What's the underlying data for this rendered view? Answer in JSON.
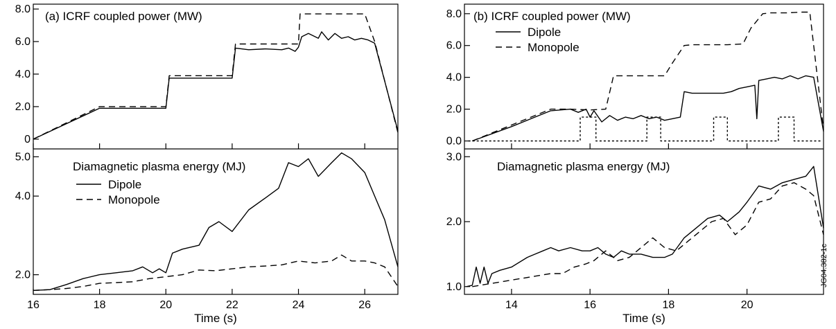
{
  "chart_data": [
    {
      "panel": "a",
      "type": "line",
      "xlabel": "Time (s)",
      "xlim": [
        16,
        27
      ],
      "x_ticks": [
        16,
        18,
        20,
        22,
        24,
        26
      ],
      "tick_labels": {
        "x": [
          "16",
          "18",
          "20",
          "22",
          "24",
          "26"
        ],
        "top_y": [
          "0",
          "2.0",
          "4.0",
          "6.0",
          "8.0"
        ],
        "bottom_y": [
          "2.0",
          "4.0",
          "5.0"
        ]
      },
      "top": {
        "annotation": "(a)  ICRF coupled power (MW)",
        "ylim": [
          -0.6,
          8.3
        ],
        "y_ticks": [
          0,
          2,
          4,
          6,
          8
        ],
        "series": [
          {
            "style": "solid",
            "x": [
              16.0,
              18.0,
              20.0,
              20.1,
              22.0,
              22.1,
              22.5,
              23.0,
              23.5,
              23.7,
              23.9,
              24.0,
              24.1,
              24.3,
              24.6,
              24.7,
              24.9,
              25.1,
              25.3,
              25.5,
              25.7,
              25.9,
              26.1,
              26.3,
              27.0
            ],
            "y": [
              0,
              1.9,
              1.9,
              3.75,
              3.75,
              5.6,
              5.5,
              5.55,
              5.5,
              5.6,
              5.4,
              5.65,
              6.3,
              6.5,
              6.2,
              6.6,
              6.1,
              6.5,
              6.2,
              6.3,
              6.1,
              6.2,
              6.1,
              5.9,
              0.5
            ]
          },
          {
            "style": "dashed",
            "x": [
              16.0,
              18.0,
              20.0,
              20.1,
              22.0,
              22.1,
              24.0,
              24.05,
              26.0,
              26.3,
              27.0
            ],
            "y": [
              0,
              2.0,
              2.0,
              3.9,
              3.9,
              5.85,
              5.85,
              7.7,
              7.7,
              6.0,
              0.4
            ]
          }
        ]
      },
      "bottom": {
        "annotation": "Diamagnetic plasma energy (MJ)",
        "legend": [
          {
            "label": "Dipole",
            "style": "solid"
          },
          {
            "label": "Monopole",
            "style": "dashed"
          }
        ],
        "ylim": [
          1.5,
          5.2
        ],
        "y_ticks": [
          2,
          4,
          5
        ],
        "series": [
          {
            "style": "solid",
            "x": [
              16.0,
              16.5,
              17.0,
              17.5,
              18.0,
              18.5,
              19.0,
              19.3,
              19.6,
              19.8,
              20.0,
              20.2,
              20.5,
              21.0,
              21.3,
              21.6,
              22.0,
              22.5,
              23.0,
              23.4,
              23.7,
              24.0,
              24.3,
              24.6,
              25.0,
              25.3,
              25.6,
              26.0,
              26.3,
              26.6,
              27.0
            ],
            "y": [
              1.6,
              1.62,
              1.75,
              1.9,
              2.0,
              2.05,
              2.1,
              2.2,
              2.05,
              2.15,
              2.05,
              2.55,
              2.65,
              2.75,
              3.2,
              3.35,
              3.1,
              3.65,
              3.95,
              4.2,
              4.85,
              4.75,
              4.95,
              4.5,
              4.85,
              5.1,
              4.95,
              4.6,
              4.0,
              3.4,
              2.2
            ]
          },
          {
            "style": "dashed",
            "x": [
              16.0,
              16.5,
              17.0,
              17.5,
              18.0,
              18.5,
              19.0,
              19.5,
              20.0,
              20.5,
              21.0,
              21.5,
              22.0,
              22.5,
              23.0,
              23.5,
              24.0,
              24.5,
              25.0,
              25.3,
              25.6,
              26.0,
              26.3,
              26.6,
              27.0
            ],
            "y": [
              1.6,
              1.62,
              1.65,
              1.7,
              1.78,
              1.8,
              1.82,
              1.9,
              1.95,
              2.0,
              2.12,
              2.1,
              2.15,
              2.2,
              2.22,
              2.25,
              2.35,
              2.3,
              2.35,
              2.5,
              2.35,
              2.35,
              2.3,
              2.2,
              1.7
            ]
          }
        ]
      }
    },
    {
      "panel": "b",
      "type": "line",
      "xlabel": "Time (s)",
      "xlim": [
        12.8,
        21.95
      ],
      "x_ticks": [
        14,
        16,
        18,
        20
      ],
      "tick_labels": {
        "x": [
          "14",
          "16",
          "18",
          "20"
        ],
        "top_y": [
          "0.0",
          "2.0",
          "4.0",
          "6.0",
          "8.0"
        ],
        "bottom_y": [
          "1.0",
          "2.0",
          "3.0"
        ]
      },
      "top": {
        "annotation": "(b)  ICRF coupled power (MW)",
        "legend": [
          {
            "label": "Dipole",
            "style": "solid"
          },
          {
            "label": "Monopole",
            "style": "dashed"
          }
        ],
        "ylim": [
          -0.5,
          8.6
        ],
        "y_ticks": [
          0,
          2,
          4,
          6,
          8
        ],
        "series": [
          {
            "style": "solid",
            "x": [
              13.0,
              14.0,
              15.0,
              15.5,
              15.7,
              15.9,
              16.0,
              16.1,
              16.3,
              16.5,
              16.7,
              16.9,
              17.1,
              17.3,
              17.5,
              17.7,
              17.9,
              18.1,
              18.3,
              18.4,
              18.6,
              19.0,
              19.4,
              19.6,
              19.8,
              20.0,
              20.2,
              20.25,
              20.3,
              20.5,
              20.7,
              20.9,
              21.1,
              21.3,
              21.5,
              21.7,
              21.95
            ],
            "y": [
              0,
              0.9,
              1.9,
              2.0,
              1.8,
              2.0,
              1.5,
              1.9,
              1.2,
              1.6,
              1.3,
              1.5,
              1.4,
              1.6,
              1.4,
              1.5,
              1.3,
              1.4,
              1.5,
              3.1,
              3.0,
              3.0,
              3.0,
              3.1,
              3.3,
              3.4,
              3.5,
              1.4,
              3.8,
              3.9,
              4.0,
              3.9,
              4.1,
              3.9,
              4.1,
              4.0,
              0.6
            ]
          },
          {
            "style": "dashed",
            "x": [
              13.0,
              14.0,
              15.0,
              15.5,
              16.0,
              16.4,
              16.6,
              17.0,
              17.5,
              17.9,
              18.1,
              18.4,
              18.6,
              19.0,
              19.5,
              19.9,
              20.1,
              20.4,
              20.6,
              21.0,
              21.4,
              21.6,
              21.95
            ],
            "y": [
              0,
              1.0,
              2.0,
              2.0,
              1.95,
              2.0,
              4.1,
              4.1,
              4.1,
              4.1,
              4.9,
              6.0,
              6.05,
              6.05,
              6.05,
              6.1,
              7.1,
              8.0,
              8.05,
              8.05,
              8.1,
              8.1,
              0.7
            ]
          },
          {
            "style": "dotted",
            "x": [
              12.9,
              15.75,
              15.75,
              16.15,
              16.15,
              17.45,
              17.45,
              17.8,
              17.8,
              19.15,
              19.15,
              19.5,
              19.5,
              20.8,
              20.8,
              21.2,
              21.2,
              21.9
            ],
            "y": [
              0,
              0,
              1.5,
              1.5,
              0,
              0,
              1.5,
              1.5,
              0,
              0,
              1.5,
              1.5,
              0,
              0,
              1.5,
              1.5,
              0,
              0
            ]
          }
        ]
      },
      "bottom": {
        "annotation": "Diamagnetic plasma energy (MJ)",
        "ylim": [
          0.88,
          3.12
        ],
        "y_ticks": [
          1,
          2,
          3
        ],
        "series": [
          {
            "style": "solid",
            "x": [
              12.85,
              13.0,
              13.1,
              13.2,
              13.3,
              13.4,
              13.5,
              13.7,
              14.0,
              14.4,
              14.6,
              14.8,
              15.0,
              15.2,
              15.5,
              15.8,
              16.0,
              16.2,
              16.4,
              16.6,
              16.8,
              17.0,
              17.3,
              17.6,
              17.9,
              18.1,
              18.4,
              18.7,
              19.0,
              19.3,
              19.5,
              19.8,
              20.0,
              20.3,
              20.6,
              20.9,
              21.2,
              21.5,
              21.7,
              21.95
            ],
            "y": [
              1.0,
              1.02,
              1.3,
              1.05,
              1.3,
              1.05,
              1.2,
              1.25,
              1.3,
              1.45,
              1.5,
              1.55,
              1.6,
              1.55,
              1.6,
              1.55,
              1.55,
              1.6,
              1.5,
              1.45,
              1.55,
              1.5,
              1.5,
              1.45,
              1.45,
              1.5,
              1.75,
              1.9,
              2.05,
              2.1,
              2.0,
              2.15,
              2.3,
              2.55,
              2.5,
              2.6,
              2.65,
              2.7,
              2.85,
              1.9
            ]
          },
          {
            "style": "dashed",
            "x": [
              13.0,
              13.5,
              14.0,
              14.5,
              15.0,
              15.3,
              15.6,
              15.9,
              16.1,
              16.4,
              16.7,
              17.0,
              17.3,
              17.6,
              17.9,
              18.2,
              18.5,
              18.8,
              19.1,
              19.4,
              19.7,
              20.0,
              20.3,
              20.6,
              20.9,
              21.2,
              21.5,
              21.7,
              21.95
            ],
            "y": [
              1.0,
              1.05,
              1.1,
              1.15,
              1.2,
              1.2,
              1.3,
              1.35,
              1.4,
              1.55,
              1.4,
              1.45,
              1.6,
              1.75,
              1.6,
              1.55,
              1.7,
              1.85,
              2.0,
              2.05,
              1.8,
              1.95,
              2.3,
              2.35,
              2.55,
              2.6,
              2.5,
              2.4,
              1.8
            ]
          }
        ]
      }
    }
  ],
  "footer": {
    "code": "JG04.382-1c"
  }
}
